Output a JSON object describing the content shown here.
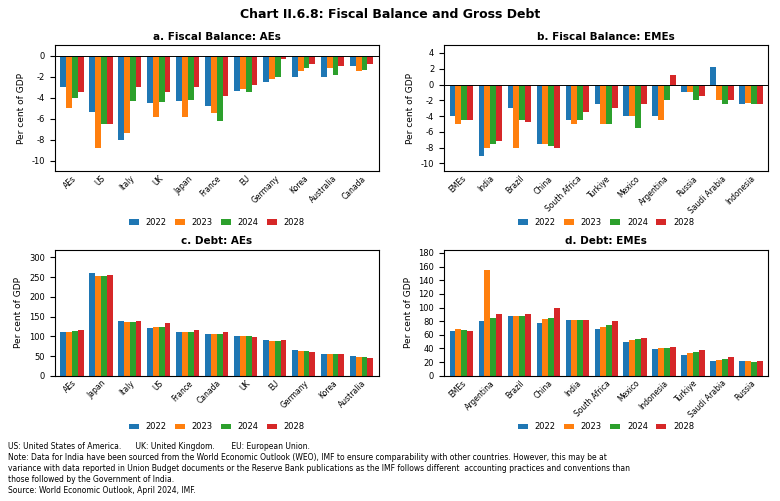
{
  "title": "Chart II.6.8: Fiscal Balance and Gross Debt",
  "annotations": [
    "US: United States of America.      UK: United Kingdom.       EU: European Union.",
    "Note: Data for India have been sourced from the World Economic Outlook (WEO), IMF to ensure comparability with other countries. However, this may be at",
    "variance with data reported in Union Budget documents or the Reserve Bank publications as the IMF follows different  accounting practices and conventions than",
    "those followed by the Government of India.",
    "Source: World Economic Outlook, April 2024, IMF."
  ],
  "chart_data": [
    {
      "type": "bar",
      "title": "a. Fiscal Balance: AEs",
      "y_label": "Per cent of GDP",
      "ylim": [
        -11,
        1
      ],
      "yticks": [
        0,
        -2,
        -4,
        -6,
        -8,
        -10
      ],
      "grid": false,
      "legend": "lower center",
      "categories": [
        "AEs",
        "US",
        "Italy",
        "UK",
        "Japan",
        "France",
        "EU",
        "Germany",
        "Korea",
        "Australia",
        "Canada"
      ],
      "series": [
        {
          "name": "2022",
          "values": [
            -3.0,
            -5.4,
            -8.0,
            -4.5,
            -4.3,
            -4.8,
            -3.4,
            -2.5,
            -2.0,
            -2.0,
            -1.0
          ]
        },
        {
          "name": "2023",
          "values": [
            -5.0,
            -8.8,
            -7.4,
            -5.8,
            -5.8,
            -5.5,
            -3.2,
            -2.2,
            -1.5,
            -1.2,
            -1.5
          ]
        },
        {
          "name": "2024",
          "values": [
            -4.0,
            -6.5,
            -4.3,
            -4.4,
            -4.2,
            -6.2,
            -3.5,
            -2.0,
            -1.2,
            -1.8,
            -1.4
          ]
        },
        {
          "name": "2028",
          "values": [
            -3.5,
            -6.5,
            -3.0,
            -3.5,
            -3.0,
            -3.8,
            -2.8,
            -0.3,
            -0.8,
            -1.0,
            -0.8
          ]
        }
      ]
    },
    {
      "type": "bar",
      "title": "b. Fiscal Balance: EMEs",
      "y_label": "Per cent of GDP",
      "ylim": [
        -11,
        5
      ],
      "yticks": [
        4,
        2,
        0,
        -2,
        -4,
        -6,
        -8,
        -10
      ],
      "grid": false,
      "legend": "lower center",
      "categories": [
        "EMEs",
        "India",
        "Brazil",
        "China",
        "South Africa",
        "Turkiye",
        "Mexico",
        "Argentina",
        "Russia",
        "Saudi Arabia",
        "Indonesia"
      ],
      "series": [
        {
          "name": "2022",
          "values": [
            -4.0,
            -9.0,
            -3.0,
            -7.5,
            -4.5,
            -2.5,
            -4.0,
            -4.0,
            -1.0,
            2.2,
            -2.5
          ]
        },
        {
          "name": "2023",
          "values": [
            -5.0,
            -8.0,
            -8.0,
            -7.5,
            -5.0,
            -5.0,
            -4.0,
            -4.5,
            -1.0,
            -2.0,
            -2.3
          ]
        },
        {
          "name": "2024",
          "values": [
            -4.5,
            -7.5,
            -4.5,
            -7.8,
            -4.5,
            -5.0,
            -5.5,
            -2.0,
            -2.0,
            -2.5,
            -2.5
          ]
        },
        {
          "name": "2028",
          "values": [
            -4.5,
            -7.2,
            -4.8,
            -8.0,
            -3.5,
            -3.0,
            -2.5,
            1.2,
            -1.5,
            -2.0,
            -2.5
          ]
        }
      ]
    },
    {
      "type": "bar",
      "title": "c. Debt: AEs",
      "y_label": "Per cent of GDP",
      "ylim": [
        0,
        320
      ],
      "yticks": [
        0,
        50,
        100,
        150,
        200,
        250,
        300
      ],
      "grid": false,
      "legend": "lower center",
      "categories": [
        "AEs",
        "Japan",
        "Italy",
        "US",
        "France",
        "Canada",
        "UK",
        "EU",
        "Germany",
        "Korea",
        "Australia"
      ],
      "series": [
        {
          "name": "2022",
          "values": [
            112,
            261,
            140,
            122,
            112,
            107,
            101,
            90,
            65,
            54,
            50
          ]
        },
        {
          "name": "2023",
          "values": [
            112,
            252,
            137,
            123,
            110,
            107,
            100,
            89,
            64,
            54,
            48
          ]
        },
        {
          "name": "2024",
          "values": [
            113,
            252,
            137,
            124,
            110,
            105,
            100,
            88,
            64,
            55,
            48
          ]
        },
        {
          "name": "2028",
          "values": [
            115,
            255,
            140,
            134,
            116,
            112,
            98,
            90,
            60,
            55,
            45
          ]
        }
      ]
    },
    {
      "type": "bar",
      "title": "d. Debt: EMEs",
      "y_label": "Per cent of GDP",
      "ylim": [
        0,
        185
      ],
      "yticks": [
        0,
        20,
        40,
        60,
        80,
        100,
        120,
        140,
        160,
        180
      ],
      "grid": false,
      "legend": "lower center",
      "categories": [
        "EMEs",
        "Argentina",
        "Brazil",
        "China",
        "India",
        "South Africa",
        "Mexico",
        "Indonesia",
        "Turkiye",
        "Saudi Arabia",
        "Russia"
      ],
      "series": [
        {
          "name": "2022",
          "values": [
            65,
            80,
            88,
            77,
            81,
            68,
            50,
            39,
            30,
            22,
            21
          ]
        },
        {
          "name": "2023",
          "values": [
            68,
            155,
            88,
            83,
            82,
            72,
            53,
            40,
            33,
            23,
            22
          ]
        },
        {
          "name": "2024",
          "values": [
            67,
            85,
            88,
            84,
            82,
            74,
            54,
            41,
            35,
            24,
            20
          ]
        },
        {
          "name": "2028",
          "values": [
            65,
            90,
            90,
            100,
            82,
            80,
            55,
            42,
            38,
            27,
            22
          ]
        }
      ]
    }
  ]
}
